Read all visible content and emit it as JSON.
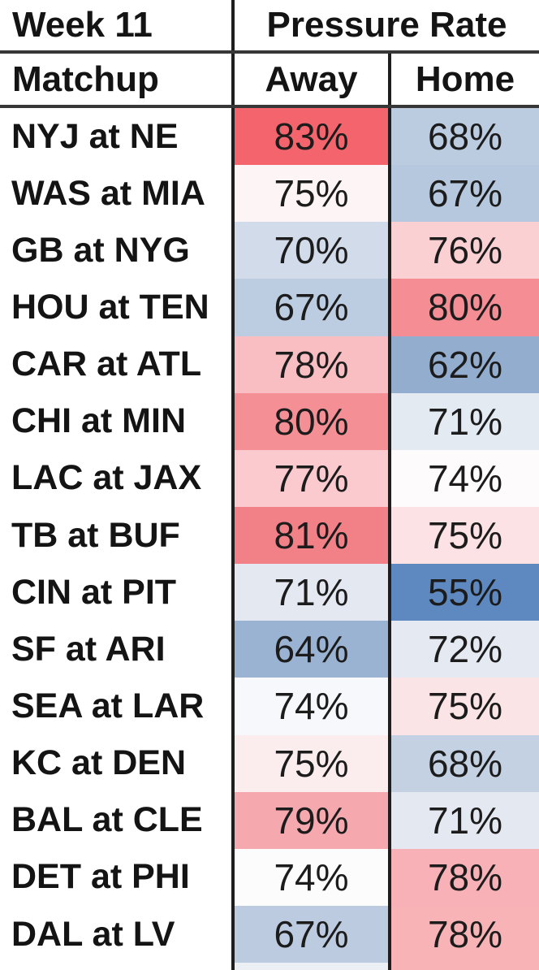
{
  "header": {
    "week_label": "Week 11",
    "group_label": "Pressure Rate",
    "matchup_label": "Matchup",
    "away_label": "Away",
    "home_label": "Home"
  },
  "colors": {
    "background": "#FFFFFF",
    "text": "#141414",
    "vertical_border": "#1E1E1E",
    "horizontal_border": "#373737",
    "heat_high_red": "#F3646C",
    "heat_mid_white": "#FFFFFF",
    "heat_low_blue": "#5E89C0"
  },
  "chart_data": {
    "type": "heatmap-table",
    "title": "Week 11",
    "value_group": "Pressure Rate",
    "columns": [
      "Matchup",
      "Away",
      "Home"
    ],
    "unit": "%",
    "color_semantics": {
      "high": "red",
      "mid": "white",
      "low": "blue"
    },
    "rows": [
      {
        "matchup": "NYJ at NE",
        "away": 83,
        "home": 68,
        "away_bg": "#F3646C",
        "home_bg": "#BCCCE0"
      },
      {
        "matchup": "WAS at MIA",
        "away": 75,
        "home": 67,
        "away_bg": "#FDF4F5",
        "home_bg": "#B6C8DD"
      },
      {
        "matchup": "GB at NYG",
        "away": 70,
        "home": 76,
        "away_bg": "#D2DBE9",
        "home_bg": "#FBD0D3"
      },
      {
        "matchup": "HOU at TEN",
        "away": 67,
        "home": 80,
        "away_bg": "#BDCDE1",
        "home_bg": "#F58E94"
      },
      {
        "matchup": "CAR at ATL",
        "away": 78,
        "home": 62,
        "away_bg": "#F9BEC2",
        "home_bg": "#93ADCE"
      },
      {
        "matchup": "CHI at MIN",
        "away": 80,
        "home": 71,
        "away_bg": "#F58F96",
        "home_bg": "#E4EAF2"
      },
      {
        "matchup": "LAC at JAX",
        "away": 77,
        "home": 74,
        "away_bg": "#FACACE",
        "home_bg": "#FDFBFC"
      },
      {
        "matchup": "TB at BUF",
        "away": 81,
        "home": 75,
        "away_bg": "#F28087",
        "home_bg": "#FCE2E4"
      },
      {
        "matchup": "CIN at PIT",
        "away": 71,
        "home": 55,
        "away_bg": "#E4E8F1",
        "home_bg": "#5E89C0"
      },
      {
        "matchup": "SF at ARI",
        "away": 64,
        "home": 72,
        "away_bg": "#9BB3D3",
        "home_bg": "#E4E9F2"
      },
      {
        "matchup": "SEA at LAR",
        "away": 74,
        "home": 75,
        "away_bg": "#F6F8FB",
        "home_bg": "#FBE4E5"
      },
      {
        "matchup": "KC at DEN",
        "away": 75,
        "home": 68,
        "away_bg": "#FBEDEE",
        "home_bg": "#C3D1E3"
      },
      {
        "matchup": "BAL at CLE",
        "away": 79,
        "home": 71,
        "away_bg": "#F5A9AE",
        "home_bg": "#E3E8F1"
      },
      {
        "matchup": "DET at PHI",
        "away": 74,
        "home": 78,
        "away_bg": "#FCFCFD",
        "home_bg": "#F8B1B6"
      },
      {
        "matchup": "DAL at LV",
        "away": 67,
        "home": 78,
        "away_bg": "#BCCBE0",
        "home_bg": "#F8B3B7"
      }
    ],
    "partial_bottom_row": {
      "away_bg": "#ECF0F5",
      "home_bg": "#F8B3B7"
    }
  }
}
